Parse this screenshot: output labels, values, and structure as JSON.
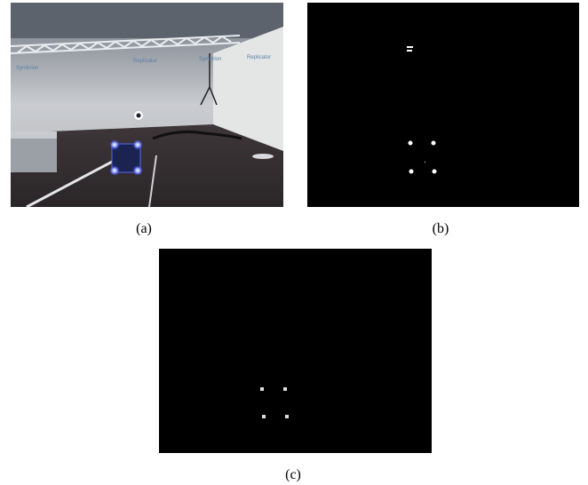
{
  "figure": {
    "panels": [
      {
        "caption": "(a)",
        "scene_texts": [
          "Symbrion",
          "Replicator",
          "Symbrion",
          "Replicator"
        ]
      },
      {
        "caption": "(b)"
      },
      {
        "caption": "(c)"
      }
    ]
  }
}
